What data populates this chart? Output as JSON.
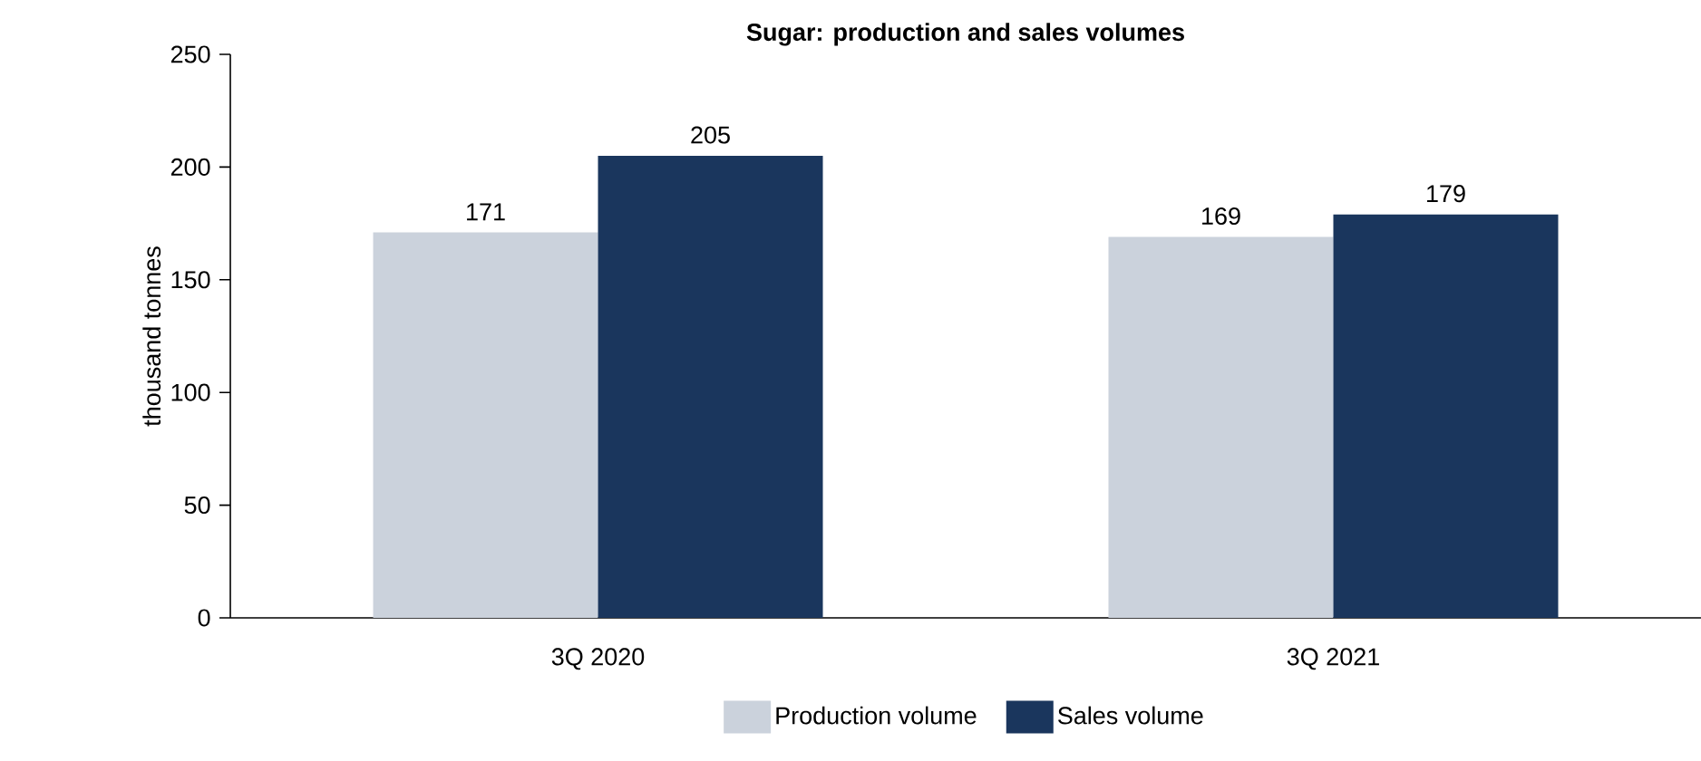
{
  "chart_data": {
    "type": "bar",
    "title": "Sugar: production and sales volumes",
    "ylabel": "thousand tonnes",
    "categories": [
      "3Q 2020",
      "3Q 2021"
    ],
    "series": [
      {
        "name": "Production volume",
        "color": "#cbd2dc",
        "values": [
          171,
          169
        ]
      },
      {
        "name": "Sales volume",
        "color": "#1a365d",
        "values": [
          205,
          179
        ]
      }
    ],
    "ylim": [
      0,
      250
    ],
    "yticks": [
      0,
      50,
      100,
      150,
      200,
      250
    ],
    "data_labels": true,
    "legend": "bottom",
    "grid": false
  }
}
